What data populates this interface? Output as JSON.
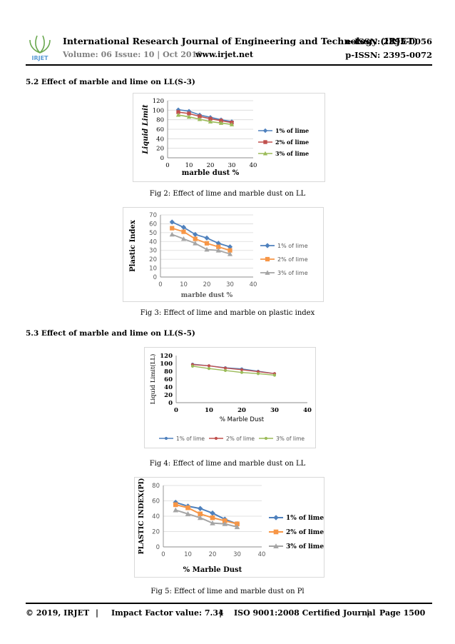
{
  "header": {
    "journal_title": "International Research Journal of Engineering and Technology (IRJET)",
    "e_issn": "e-ISSN: 2395-0056",
    "volume": "Volume: 06 Issue: 10 | Oct 2019",
    "website": "www.irjet.net",
    "p_issn": "p-ISSN: 2395-0072",
    "logo_text": "IRJET"
  },
  "sections": {
    "s52": "5.2 Effect of marble and lime on LL(S-3)",
    "s53": "5.3 Effect of marble and lime on LL(S-5)"
  },
  "captions": {
    "fig2": "Fig 2: Effect of lime and marble dust on LL",
    "fig3": "Fig 3: Effect of lime and marble on plastic index",
    "fig4": "Fig 4: Effect of lime and marble dust on LL",
    "fig5": "Fig 5: Effect of lime and marble dust on Pl"
  },
  "colors": {
    "blue": "#4f81bd",
    "red": "#c0504d",
    "green": "#9bbb59",
    "orange": "#f79646",
    "gray": "#a5a5a5"
  },
  "chart_data": [
    {
      "type": "line",
      "id": "fig2",
      "ylabel": "Liquid Limit",
      "xlabel": "marble dust %",
      "xlim": [
        0,
        40
      ],
      "ylim": [
        0,
        120
      ],
      "xticks": [
        0,
        10,
        20,
        30,
        40
      ],
      "yticks": [
        0,
        20,
        40,
        60,
        80,
        100,
        120
      ],
      "legend": "right",
      "series": [
        {
          "name": "1% of lime",
          "color": "#4f81bd",
          "marker": "diamond",
          "x": [
            5,
            10,
            15,
            20,
            25,
            30
          ],
          "y": [
            101,
            98,
            90,
            85,
            80,
            76
          ]
        },
        {
          "name": "2% of lime",
          "color": "#c0504d",
          "marker": "square",
          "x": [
            5,
            10,
            15,
            20,
            25,
            30
          ],
          "y": [
            96,
            93,
            87,
            82,
            78,
            74
          ]
        },
        {
          "name": "3% of lime",
          "color": "#9bbb59",
          "marker": "triangle",
          "x": [
            5,
            10,
            15,
            20,
            25,
            30
          ],
          "y": [
            90,
            86,
            81,
            76,
            73,
            70
          ]
        }
      ]
    },
    {
      "type": "line",
      "id": "fig3",
      "ylabel": "Plastic Index",
      "xlabel": "marble dust %",
      "xlim": [
        0,
        40
      ],
      "ylim": [
        0,
        70
      ],
      "xticks": [
        0,
        10,
        20,
        30,
        40
      ],
      "yticks": [
        0,
        10,
        20,
        30,
        40,
        50,
        60,
        70
      ],
      "legend": "right",
      "series": [
        {
          "name": "1% of lime",
          "color": "#4f81bd",
          "marker": "diamond",
          "x": [
            5,
            10,
            15,
            20,
            25,
            30
          ],
          "y": [
            62,
            56,
            48,
            44,
            38,
            34
          ]
        },
        {
          "name": "2% of lime",
          "color": "#f79646",
          "marker": "square",
          "x": [
            5,
            10,
            15,
            20,
            25,
            30
          ],
          "y": [
            55,
            51,
            43,
            38,
            34,
            30
          ]
        },
        {
          "name": "3% of lime",
          "color": "#a5a5a5",
          "marker": "triangle",
          "x": [
            5,
            10,
            15,
            20,
            25,
            30
          ],
          "y": [
            48,
            43,
            38,
            31,
            30,
            26
          ]
        }
      ]
    },
    {
      "type": "line",
      "id": "fig4",
      "ylabel": "Liquid Limit(LL)",
      "xlabel": "% Marble Dust",
      "xlim": [
        0,
        40
      ],
      "ylim": [
        0,
        120
      ],
      "xticks": [
        0,
        10,
        20,
        30,
        40
      ],
      "yticks": [
        0,
        20,
        40,
        60,
        80,
        100,
        120
      ],
      "legend": "bottom",
      "series": [
        {
          "name": "1% of lime",
          "color": "#4f81bd",
          "marker": "circle",
          "x": [
            5,
            10,
            15,
            20,
            25,
            30
          ],
          "y": [
            98,
            94,
            89,
            86,
            80,
            74
          ]
        },
        {
          "name": "2% of lime",
          "color": "#c0504d",
          "marker": "circle",
          "x": [
            5,
            10,
            15,
            20,
            25,
            30
          ],
          "y": [
            97,
            94,
            88,
            84,
            79,
            74
          ]
        },
        {
          "name": "3% of lime",
          "color": "#9bbb59",
          "marker": "circle",
          "x": [
            5,
            10,
            15,
            20,
            25,
            30
          ],
          "y": [
            93,
            87,
            82,
            77,
            74,
            70
          ]
        }
      ]
    },
    {
      "type": "line",
      "id": "fig5",
      "ylabel": "PLASTIC INDEX(PI)",
      "xlabel": "% Marble Dust",
      "xlim": [
        0,
        40
      ],
      "ylim": [
        0,
        80
      ],
      "xticks": [
        0,
        10,
        20,
        30,
        40
      ],
      "yticks": [
        0,
        20,
        40,
        60,
        80
      ],
      "legend": "right",
      "series": [
        {
          "name": "1% of lime",
          "color": "#4f81bd",
          "marker": "diamond",
          "x": [
            5,
            10,
            15,
            20,
            25,
            30
          ],
          "y": [
            58,
            53,
            50,
            44,
            36,
            30
          ]
        },
        {
          "name": "2% of lime",
          "color": "#f79646",
          "marker": "square",
          "x": [
            5,
            10,
            15,
            20,
            25,
            30
          ],
          "y": [
            55,
            51,
            43,
            38,
            34,
            30
          ]
        },
        {
          "name": "3% of lime",
          "color": "#a5a5a5",
          "marker": "triangle",
          "x": [
            5,
            10,
            15,
            20,
            25,
            30
          ],
          "y": [
            48,
            43,
            38,
            31,
            30,
            26
          ]
        }
      ]
    }
  ],
  "footer": {
    "copyright": "© 2019, IRJET",
    "sep1": "|",
    "impact": "Impact Factor value: 7.34",
    "sep2": "|",
    "iso": "ISO 9001:2008 Certified Journal",
    "sep3": "|",
    "page": "Page 1500"
  }
}
